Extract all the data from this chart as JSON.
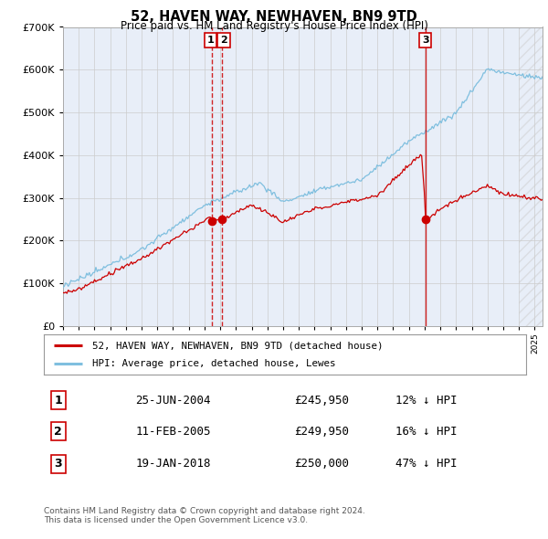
{
  "title": "52, HAVEN WAY, NEWHAVEN, BN9 9TD",
  "subtitle": "Price paid vs. HM Land Registry's House Price Index (HPI)",
  "ylim": [
    0,
    700000
  ],
  "yticks": [
    0,
    100000,
    200000,
    300000,
    400000,
    500000,
    600000,
    700000
  ],
  "hpi_color": "#7fbfdf",
  "property_color": "#cc0000",
  "vline_color": "#cc0000",
  "sale_dates": [
    2004.49,
    2005.11,
    2018.05
  ],
  "sale_prices": [
    245950,
    249950,
    250000
  ],
  "sale_labels": [
    "1",
    "2",
    "3"
  ],
  "table_entries": [
    [
      "1",
      "25-JUN-2004",
      "£245,950",
      "12% ↓ HPI"
    ],
    [
      "2",
      "11-FEB-2005",
      "£249,950",
      "16% ↓ HPI"
    ],
    [
      "3",
      "19-JAN-2018",
      "£250,000",
      "47% ↓ HPI"
    ]
  ],
  "footnote": "Contains HM Land Registry data © Crown copyright and database right 2024.\nThis data is licensed under the Open Government Licence v3.0.",
  "background_chart": "#e8eef8",
  "background_fig": "#ffffff",
  "xmin": 1995,
  "xmax": 2025.5
}
